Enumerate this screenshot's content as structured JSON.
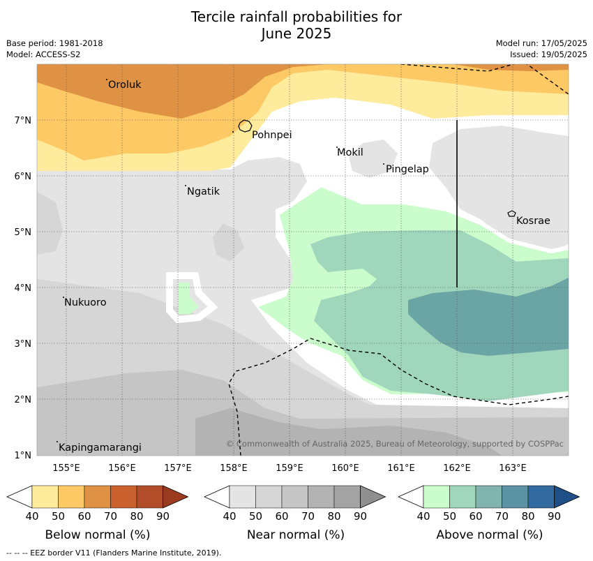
{
  "title_line1": "Tercile rainfall probabilities for",
  "title_line2": "June 2025",
  "meta_left": [
    "Base period: 1981-2018",
    "Model: ACCESS-S2"
  ],
  "meta_right": [
    "Model run: 17/05/2025",
    "Issued: 19/05/2025"
  ],
  "longitude_labels": [
    "155°E",
    "156°E",
    "157°E",
    "158°E",
    "159°E",
    "160°E",
    "161°E",
    "162°E",
    "163°E"
  ],
  "latitude_labels": [
    "7°N",
    "6°N",
    "5°N",
    "4°N",
    "3°N",
    "2°N",
    "1°N"
  ],
  "places": [
    "Oroluk",
    "Pohnpei",
    "Mokil",
    "Pingelap",
    "Ngatik",
    "Kosrae",
    "Nukuoro",
    "Kapingamarangi"
  ],
  "copyright": "© Commonwealth of Australia 2025, Bureau of Meteorology, supported by COSPPac",
  "colorbars": [
    {
      "label": "Below normal (%)",
      "ticks": [
        "40",
        "50",
        "60",
        "70",
        "80",
        "90"
      ],
      "colors": [
        "#ffffff",
        "#ffeb9c",
        "#fdc965",
        "#e09244",
        "#cc6130",
        "#b24d2a",
        "#9a3b1f"
      ]
    },
    {
      "label": "Near normal (%)",
      "ticks": [
        "40",
        "50",
        "60",
        "70",
        "80",
        "90"
      ],
      "colors": [
        "#ffffff",
        "#e4e4e4",
        "#d6d6d6",
        "#c5c5c5",
        "#b3b3b3",
        "#a3a3a3",
        "#8f8f8f"
      ]
    },
    {
      "label": "Above normal (%)",
      "ticks": [
        "40",
        "50",
        "60",
        "70",
        "80",
        "90"
      ],
      "colors": [
        "#ffffff",
        "#cbfccb",
        "#a0d7bc",
        "#82b4ae",
        "#5a93a3",
        "#336ba0",
        "#1f4f87"
      ]
    }
  ],
  "footnote": "--  --  -- EEZ border V11 (Flanders Marine Institute, 2019)."
}
